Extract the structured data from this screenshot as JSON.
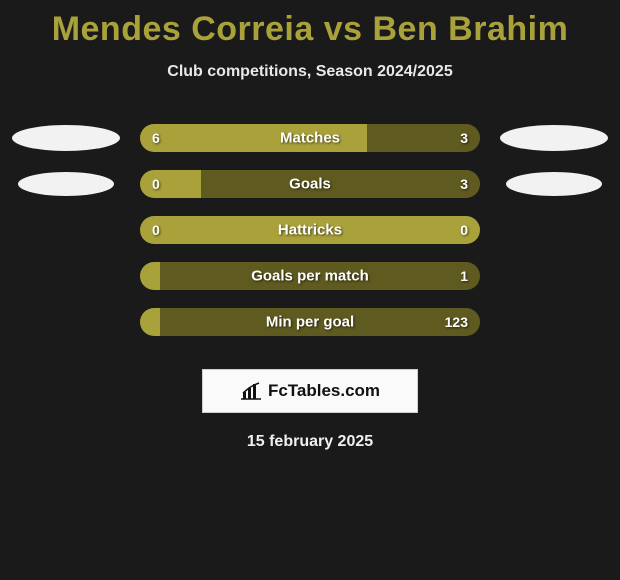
{
  "title": "Mendes Correia vs Ben Brahim",
  "title_color": "#a9a13a",
  "subtitle": "Club competitions, Season 2024/2025",
  "background": "#1a1a1a",
  "bar_left_color": "#a9a13a",
  "bar_right_color": "#5f5a1f",
  "text_color": "#ffffff",
  "brand": "FcTables.com",
  "date": "15 february 2025",
  "rows": [
    {
      "label": "Matches",
      "left_value": "6",
      "right_value": "3",
      "left_pct": 66.7,
      "right_pct": 33.3,
      "left_ellipse": "large",
      "right_ellipse": "large"
    },
    {
      "label": "Goals",
      "left_value": "0",
      "right_value": "3",
      "left_pct": 18,
      "right_pct": 82,
      "left_ellipse": "small",
      "right_ellipse": "small"
    },
    {
      "label": "Hattricks",
      "left_value": "0",
      "right_value": "0",
      "left_pct": 100,
      "right_pct": 0,
      "left_ellipse": "",
      "right_ellipse": ""
    },
    {
      "label": "Goals per match",
      "left_value": "",
      "right_value": "1",
      "left_pct": 6,
      "right_pct": 94,
      "left_ellipse": "",
      "right_ellipse": ""
    },
    {
      "label": "Min per goal",
      "left_value": "",
      "right_value": "123",
      "left_pct": 6,
      "right_pct": 94,
      "left_ellipse": "",
      "right_ellipse": ""
    }
  ]
}
